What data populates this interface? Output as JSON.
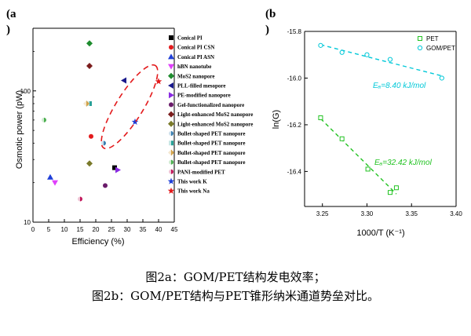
{
  "panel_labels": {
    "a": "(a",
    "a2": ")",
    "b": "(b",
    "b2": ")"
  },
  "captions": {
    "line1": "图2a：GOM/PET结构发电效率；",
    "line2": "图2b：GOM/PET结构与PET锥形纳米通道势垒对比。"
  },
  "chart_data": [
    {
      "type": "scatter",
      "xlabel": "Efficiency (%)",
      "ylabel": "Osmotic power (pW)",
      "xlim": [
        0,
        45
      ],
      "ylim": [
        10,
        300
      ],
      "yscale": "log",
      "xticks": [
        "0",
        "5",
        "10",
        "15",
        "20",
        "25",
        "30",
        "35",
        "40",
        "45"
      ],
      "yticks": [
        "10",
        "100"
      ],
      "legend_placement": "right",
      "series": [
        {
          "name": "Conical PI",
          "marker": "square",
          "color": "#000000",
          "points": [
            [
              26,
              26
            ]
          ]
        },
        {
          "name": "Conical PI CSN",
          "marker": "circle",
          "color": "#e31a1c",
          "points": [
            [
              18.5,
              45
            ]
          ]
        },
        {
          "name": "Conical PI ASN",
          "marker": "triangle-up",
          "color": "#1f3fd8",
          "points": [
            [
              5.5,
              22
            ]
          ]
        },
        {
          "name": "hBN nanotube",
          "marker": "triangle-down",
          "color": "#e040fb",
          "points": [
            [
              7,
              20
            ]
          ]
        },
        {
          "name": "MoS2 nanopore",
          "marker": "diamond",
          "color": "#1e8c2e",
          "points": [
            [
              18,
              230
            ]
          ]
        },
        {
          "name": "PLL-filled mesopore",
          "marker": "triangle-left",
          "color": "#1a1a8c",
          "points": [
            [
              29,
              120
            ]
          ]
        },
        {
          "name": "PE-modified nanopore",
          "marker": "triangle-right",
          "color": "#8a2be2",
          "points": [
            [
              27,
              25
            ]
          ]
        },
        {
          "name": "Gel-functionalized nanopore",
          "marker": "circle",
          "color": "#6a1b6a",
          "points": [
            [
              23,
              19
            ]
          ]
        },
        {
          "name": "Light-enhanced MoS2 nanopore",
          "marker": "diamond",
          "color": "#7b1c1c",
          "points": [
            [
              18,
              155
            ]
          ]
        },
        {
          "name": "Light-enhanced MoS2 nanopore",
          "marker": "diamond",
          "color": "#7a7a2a",
          "points": [
            [
              18,
              28
            ]
          ]
        },
        {
          "name": "Bullet-shaped PET nanopore",
          "marker": "circle-half",
          "color": "#3a7fb0",
          "points": [
            [
              22.5,
              40
            ]
          ]
        },
        {
          "name": "Bullet-shaped PET nanopore",
          "marker": "square-half",
          "color": "#2aa198",
          "points": [
            [
              18,
              80
            ]
          ]
        },
        {
          "name": "Bullet-shaped PET nanopore",
          "marker": "diamond-half",
          "color": "#d2a24a",
          "points": [
            [
              17,
              80
            ]
          ]
        },
        {
          "name": "Bullet-shaped PET nanopore",
          "marker": "circle-half",
          "color": "#4caf50",
          "points": [
            [
              3.5,
              60
            ]
          ]
        },
        {
          "name": "PANI-modified PET",
          "marker": "circle-half",
          "color": "#c2185b",
          "points": [
            [
              15,
              15
            ]
          ]
        },
        {
          "name": "This work K",
          "marker": "star",
          "color": "#1f3fd8",
          "points": [
            [
              32.5,
              58
            ]
          ]
        },
        {
          "name": "This work Na",
          "marker": "star",
          "color": "#e31a1c",
          "points": [
            [
              40,
              118
            ]
          ]
        }
      ]
    },
    {
      "type": "scatter",
      "xlabel": "1000/T (K⁻¹)",
      "ylabel": "ln(G)",
      "xlim": [
        3.23,
        3.4
      ],
      "ylim": [
        -16.55,
        -15.8
      ],
      "xticks": [
        "3.25",
        "3.30",
        "3.35",
        "3.40"
      ],
      "yticks": [
        "-16.4",
        "-16.2",
        "-16.0",
        "-15.8"
      ],
      "legend_placement": "top-right",
      "series": [
        {
          "name": "PET",
          "color": "#22c322",
          "marker": "square",
          "x": [
            3.248,
            3.272,
            3.301,
            3.326,
            3.333
          ],
          "y": [
            -16.17,
            -16.26,
            -16.39,
            -16.49,
            -16.47
          ]
        },
        {
          "name": "GOM/PET",
          "color": "#00c8d8",
          "marker": "circle",
          "x": [
            3.248,
            3.272,
            3.3,
            3.326,
            3.384
          ],
          "y": [
            -15.86,
            -15.89,
            -15.9,
            -15.92,
            -16.0
          ]
        }
      ],
      "annotations": [
        {
          "text": "Eₐ=8.40 kJ/mol",
          "color": "#00c8d8"
        },
        {
          "text": "Eₐ=32.42 kJ/mol",
          "color": "#22c322"
        }
      ]
    }
  ]
}
